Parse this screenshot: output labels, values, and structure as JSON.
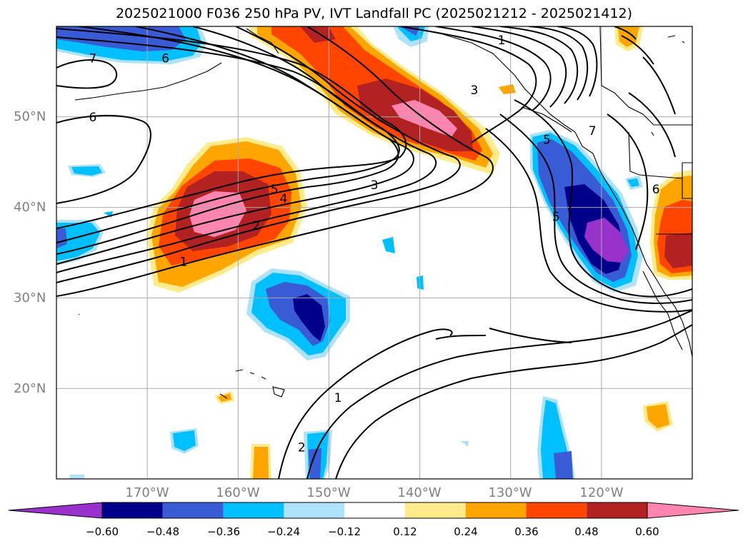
{
  "title": "2025021000 F036 250 hPa PV, IVT Landfall PC (2025021212 - 2025021412)",
  "map": {
    "projection": "PlateCarree",
    "lon_range": [
      -180,
      -110
    ],
    "lat_range": [
      10,
      60
    ],
    "lat_ticks": [
      {
        "value": 50,
        "label": "50°N"
      },
      {
        "value": 40,
        "label": "40°N"
      },
      {
        "value": 30,
        "label": "30°N"
      },
      {
        "value": 20,
        "label": "20°N"
      }
    ],
    "lon_ticks": [
      {
        "value": -170,
        "label": "170°W"
      },
      {
        "value": -160,
        "label": "160°W"
      },
      {
        "value": -150,
        "label": "150°W"
      },
      {
        "value": -140,
        "label": "140°W"
      },
      {
        "value": -130,
        "label": "130°W"
      },
      {
        "value": -120,
        "label": "120°W"
      }
    ],
    "gridlines": true,
    "contour_labels": [
      {
        "text": "7",
        "lon": -176,
        "lat": 56.5
      },
      {
        "text": "6",
        "lon": -168,
        "lat": 56.5
      },
      {
        "text": "6",
        "lon": -176,
        "lat": 50
      },
      {
        "text": "1",
        "lon": -131,
        "lat": 58.5
      },
      {
        "text": "3",
        "lon": -134,
        "lat": 53
      },
      {
        "text": "3",
        "lon": -145,
        "lat": 42.5
      },
      {
        "text": "5",
        "lon": -156,
        "lat": 42
      },
      {
        "text": "4",
        "lon": -155,
        "lat": 41
      },
      {
        "text": "2",
        "lon": -158,
        "lat": 38
      },
      {
        "text": "1",
        "lon": -166,
        "lat": 34
      },
      {
        "text": "1",
        "lon": -149,
        "lat": 19
      },
      {
        "text": "2",
        "lon": -153,
        "lat": 13.5
      },
      {
        "text": "5",
        "lon": -126,
        "lat": 47.5
      },
      {
        "text": "5",
        "lon": -125,
        "lat": 39
      },
      {
        "text": "7",
        "lon": -121,
        "lat": 48.5
      },
      {
        "text": "6",
        "lon": -114,
        "lat": 42
      }
    ]
  },
  "colorbar": {
    "colors": [
      "#9932CC",
      "#00008B",
      "#3A5BD6",
      "#00BFFF",
      "#ADE2FA",
      "#FFFFFF",
      "#FFEB8C",
      "#FFA500",
      "#FF4500",
      "#B22222",
      "#FF85B0"
    ],
    "labels": [
      "−0.60",
      "−0.48",
      "−0.36",
      "−0.24",
      "−0.12",
      "0.12",
      "0.24",
      "0.36",
      "0.48",
      "0.60"
    ]
  }
}
